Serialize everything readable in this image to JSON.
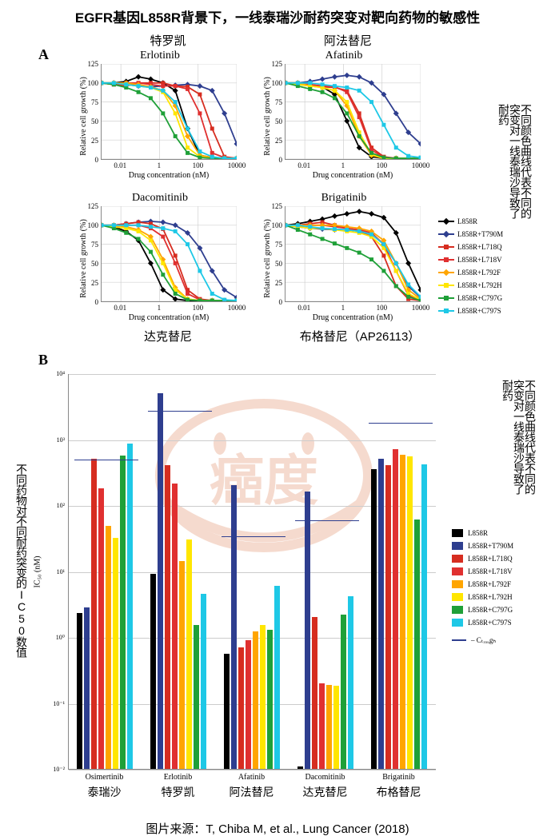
{
  "title": "EGFR基因L858R背景下，一线泰瑞沙耐药突变对靶向药物的敏感性",
  "panel_a": "A",
  "panel_b": "B",
  "charts": [
    {
      "title_en": "Erlotinib",
      "title_cn": "特罗凯",
      "title_cn_pos": "top"
    },
    {
      "title_en": "Afatinib",
      "title_cn": "阿法替尼",
      "title_cn_pos": "top"
    },
    {
      "title_en": "Dacomitinib",
      "title_cn": "达克替尼",
      "title_cn_pos": "bottom"
    },
    {
      "title_en": "Brigatinib",
      "title_cn": "布格替尼（AP26113）",
      "title_cn_pos": "bottom"
    }
  ],
  "y_axis_line": {
    "label": "Relative cell growth (%)",
    "ticks": [
      0,
      25,
      50,
      75,
      100,
      125
    ]
  },
  "x_axis_line": {
    "label": "Drug concentration (nM)",
    "ticks": [
      "0.01",
      "1",
      "100",
      "10000"
    ]
  },
  "series": [
    {
      "name": "L858R",
      "color": "#000000",
      "marker": "diamond"
    },
    {
      "name": "L858R+T790M",
      "color": "#2e3e8f",
      "marker": "diamond"
    },
    {
      "name": "L858R+L718Q",
      "color": "#d62d20",
      "marker": "square"
    },
    {
      "name": "L858R+L718V",
      "color": "#e03030",
      "marker": "triangle"
    },
    {
      "name": "L858R+L792F",
      "color": "#ffa500",
      "marker": "diamond"
    },
    {
      "name": "L858R+L792H",
      "color": "#ffe600",
      "marker": "line"
    },
    {
      "name": "L858R+C797G",
      "color": "#1fa038",
      "marker": "cross"
    },
    {
      "name": "L858R+C797S",
      "color": "#1ec8e6",
      "marker": "plus"
    }
  ],
  "line_data": {
    "erlotinib": {
      "L858R": [
        100,
        100,
        102,
        108,
        105,
        100,
        90,
        40,
        5,
        2,
        1,
        1
      ],
      "T790M": [
        100,
        100,
        98,
        96,
        95,
        96,
        97,
        98,
        96,
        90,
        60,
        20
      ],
      "L718Q": [
        100,
        98,
        96,
        100,
        100,
        100,
        96,
        95,
        85,
        40,
        3,
        1
      ],
      "L718V": [
        100,
        98,
        100,
        100,
        98,
        96,
        96,
        92,
        60,
        8,
        2,
        1
      ],
      "L792F": [
        100,
        100,
        100,
        98,
        95,
        90,
        70,
        30,
        5,
        2,
        1,
        1
      ],
      "L792H": [
        100,
        100,
        98,
        96,
        94,
        88,
        60,
        15,
        3,
        1,
        1,
        1
      ],
      "C797G": [
        100,
        98,
        94,
        88,
        80,
        60,
        30,
        8,
        2,
        1,
        1,
        1
      ],
      "C797S": [
        100,
        100,
        98,
        96,
        94,
        90,
        75,
        40,
        10,
        3,
        1,
        1
      ]
    },
    "afatinib": {
      "L858R": [
        100,
        100,
        98,
        95,
        85,
        50,
        15,
        3,
        1,
        1,
        1,
        1
      ],
      "T790M": [
        100,
        100,
        102,
        105,
        108,
        110,
        108,
        100,
        85,
        60,
        35,
        20
      ],
      "L718Q": [
        100,
        98,
        96,
        95,
        94,
        90,
        60,
        15,
        3,
        1,
        1,
        1
      ],
      "L718V": [
        100,
        100,
        98,
        96,
        95,
        88,
        55,
        12,
        2,
        1,
        1,
        1
      ],
      "L792F": [
        100,
        100,
        96,
        94,
        90,
        70,
        30,
        5,
        1,
        1,
        1,
        1
      ],
      "L792H": [
        100,
        98,
        96,
        94,
        90,
        75,
        35,
        6,
        1,
        1,
        1,
        1
      ],
      "C797G": [
        100,
        96,
        92,
        88,
        80,
        60,
        30,
        8,
        2,
        1,
        1,
        1
      ],
      "C797S": [
        100,
        100,
        100,
        98,
        96,
        94,
        90,
        75,
        45,
        15,
        4,
        2
      ]
    },
    "dacomitinib": {
      "L858R": [
        100,
        98,
        92,
        80,
        50,
        15,
        3,
        1,
        1,
        1,
        1,
        1
      ],
      "T790M": [
        100,
        100,
        102,
        104,
        105,
        104,
        100,
        90,
        70,
        40,
        15,
        5
      ],
      "L718Q": [
        100,
        100,
        102,
        104,
        102,
        95,
        60,
        15,
        3,
        1,
        1,
        1
      ],
      "L718V": [
        100,
        98,
        100,
        100,
        96,
        85,
        50,
        10,
        2,
        1,
        1,
        1
      ],
      "L792F": [
        100,
        100,
        98,
        94,
        85,
        55,
        18,
        3,
        1,
        1,
        1,
        1
      ],
      "L792H": [
        100,
        98,
        96,
        92,
        80,
        50,
        15,
        3,
        1,
        1,
        1,
        1
      ],
      "C797G": [
        100,
        96,
        90,
        82,
        65,
        35,
        10,
        2,
        1,
        1,
        1,
        1
      ],
      "C797S": [
        100,
        100,
        100,
        100,
        98,
        96,
        92,
        75,
        40,
        10,
        2,
        1
      ]
    },
    "brigatinib": {
      "L858R": [
        100,
        102,
        105,
        108,
        112,
        115,
        118,
        115,
        110,
        90,
        50,
        15
      ],
      "T790M": [
        100,
        98,
        96,
        95,
        94,
        94,
        92,
        88,
        75,
        50,
        20,
        5
      ],
      "L718Q": [
        100,
        100,
        102,
        104,
        100,
        96,
        92,
        85,
        60,
        20,
        3,
        1
      ],
      "L718V": [
        100,
        98,
        100,
        100,
        98,
        96,
        94,
        90,
        75,
        40,
        8,
        2
      ],
      "L792F": [
        100,
        100,
        100,
        100,
        100,
        98,
        96,
        92,
        80,
        50,
        15,
        3
      ],
      "L792H": [
        100,
        98,
        96,
        96,
        94,
        92,
        90,
        85,
        70,
        40,
        10,
        2
      ],
      "C797G": [
        100,
        94,
        88,
        82,
        76,
        70,
        64,
        55,
        40,
        20,
        6,
        1
      ],
      "C797S": [
        100,
        100,
        98,
        96,
        95,
        94,
        92,
        88,
        75,
        50,
        22,
        6
      ]
    }
  },
  "annotation_vert": "不同颜色曲线代表不同的突变对一线泰瑞沙导致了耐药",
  "panel_b_ytitle": "不同药物对不同耐药突变的IC50数值",
  "bar_ylabel": "IC₅₀ (nM)",
  "bar_yticks": [
    "10⁻²",
    "10⁻¹",
    "10⁰",
    "10¹",
    "10²",
    "10³",
    "10⁴"
  ],
  "bar_drugs": [
    {
      "en": "Osimertinib",
      "cn": "泰瑞沙"
    },
    {
      "en": "Erlotinib",
      "cn": "特罗凯"
    },
    {
      "en": "Afatinib",
      "cn": "阿法替尼"
    },
    {
      "en": "Dacomitinib",
      "cn": "达克替尼"
    },
    {
      "en": "Brigatinib",
      "cn": "布格替尼"
    }
  ],
  "bar_legend_extra": {
    "name": "Cₜᵣₒᵤgₕ",
    "color": "#2e3e8f"
  },
  "bar_data": {
    "Osimertinib": [
      2.3,
      2.8,
      500,
      180,
      48,
      32,
      560,
      850
    ],
    "Erlotinib": [
      9,
      5000,
      400,
      210,
      14,
      30,
      1.5,
      4.5
    ],
    "Afatinib": [
      0.55,
      200,
      0.7,
      0.9,
      1.2,
      1.5,
      1.3,
      6
    ],
    "Dacomitinib": [
      0.011,
      160,
      2.0,
      0.2,
      0.19,
      0.18,
      2.2,
      4.2
    ],
    "Brigatinib": [
      350,
      500,
      400,
      700,
      580,
      550,
      60,
      420
    ]
  },
  "ctrough": {
    "Osimertinib": 500,
    "Erlotinib": 2800,
    "Afatinib": 35,
    "Dacomitinib": 60,
    "Brigatinib": 1800
  },
  "footer": "图片来源：T, Chiba M, et al., Lung Cancer (2018)",
  "watermark": "癌度"
}
